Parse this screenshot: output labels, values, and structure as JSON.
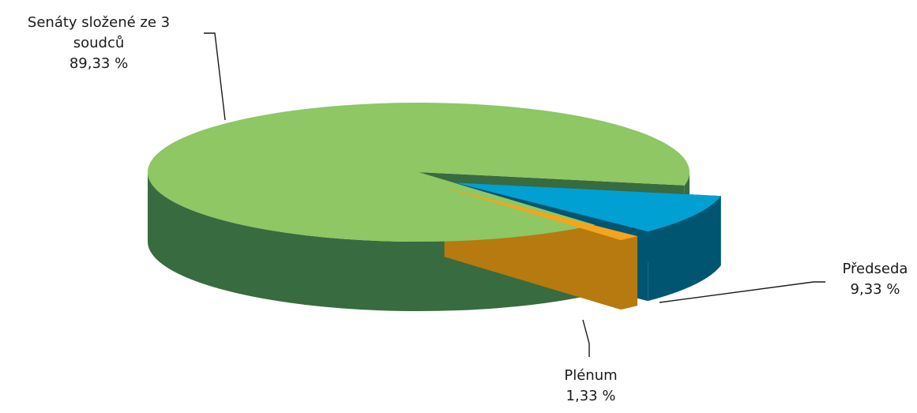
{
  "chart_data": {
    "type": "pie",
    "style": "3d-exploded",
    "slices": [
      {
        "name": "Senáty složené ze 3 soudců",
        "label_lines": [
          "Senáty složené ze 3",
          "soudců"
        ],
        "value": 89.33,
        "value_label": "89,33 %",
        "top_color": "#8ec763",
        "side_color": "#386b40"
      },
      {
        "name": "Předseda",
        "label_lines": [
          "Předseda"
        ],
        "value": 9.33,
        "value_label": "9,33 %",
        "top_color": "#00a0d2",
        "side_color": "#005570"
      },
      {
        "name": "Plénum",
        "label_lines": [
          "Plénum"
        ],
        "value": 1.33,
        "value_label": "1,33 %",
        "top_color": "#f6a41d",
        "side_color": "#b67a10"
      }
    ]
  }
}
